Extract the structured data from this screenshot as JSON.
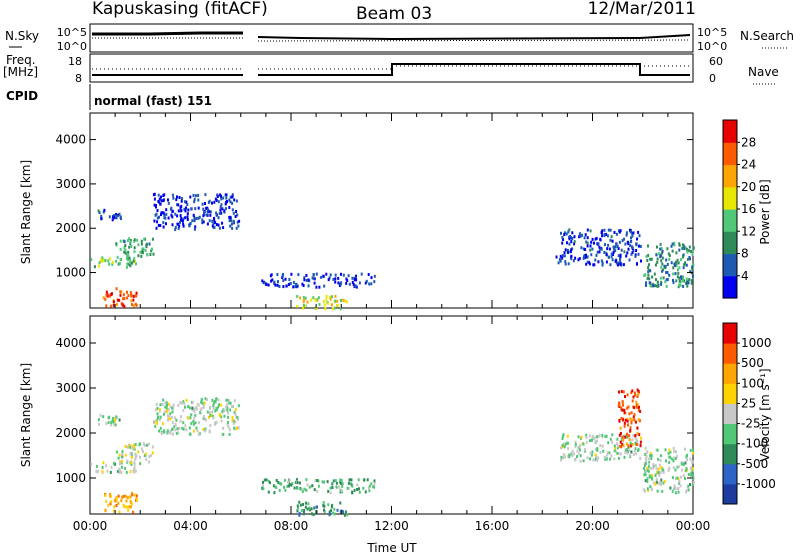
{
  "header": {
    "station": "Kapuskasing (fitACF)",
    "beam": "Beam 03",
    "date": "12/Mar/2011"
  },
  "top_panels": {
    "nsky_label": "N.Sky",
    "nsky_ticks": [
      "10^5",
      "10^0"
    ],
    "nsearch_label": "N.Search",
    "nsearch_ticks": [
      "10^5",
      "10^0"
    ],
    "freq_label": "Freq.",
    "freq_unit": "[MHz]",
    "freq_ticks": [
      "18",
      "8"
    ],
    "nave_label": "Nave",
    "nave_ticks": [
      "60",
      "0"
    ],
    "cpid_label": "CPID",
    "cpid_value": "normal (fast) 151"
  },
  "chart_data": [
    {
      "type": "heatmap",
      "name": "power-panel",
      "ylabel": "Slant Range [km]",
      "ylim": [
        200,
        4600
      ],
      "yticks": [
        "1000",
        "2000",
        "3000",
        "4000"
      ],
      "xlim": [
        0,
        24
      ],
      "colorbar_label": "Power [dB]",
      "colorbar_ticks": [
        "4",
        "8",
        "12",
        "16",
        "20",
        "24",
        "28"
      ],
      "colorbar_colors": [
        "#0000ee",
        "#1e5ab4",
        "#2e8b57",
        "#50c878",
        "#e6e600",
        "#ffa500",
        "#ff5a00",
        "#e60000"
      ],
      "features": [
        {
          "t0": 0.0,
          "t1": 1.8,
          "r0": 1150,
          "r1": 1400,
          "level": 0.45
        },
        {
          "t0": 1.0,
          "t1": 2.5,
          "r0": 1350,
          "r1": 1800,
          "level": 0.35
        },
        {
          "t0": 0.3,
          "t1": 1.2,
          "r0": 2200,
          "r1": 2450,
          "level": 0.15
        },
        {
          "t0": 2.5,
          "t1": 5.9,
          "r0": 2000,
          "r1": 2800,
          "level": 0.12
        },
        {
          "t0": 0.5,
          "t1": 1.9,
          "r0": 250,
          "r1": 700,
          "level": 0.85
        },
        {
          "t0": 6.8,
          "t1": 11.3,
          "r0": 700,
          "r1": 1000,
          "level": 0.12
        },
        {
          "t0": 8.2,
          "t1": 10.2,
          "r0": 200,
          "r1": 500,
          "level": 0.55
        },
        {
          "t0": 18.7,
          "t1": 21.9,
          "r0": 1400,
          "r1": 2000,
          "level": 0.15
        },
        {
          "t0": 18.5,
          "t1": 21.9,
          "r0": 1200,
          "r1": 1400,
          "level": 0.1
        },
        {
          "t0": 22.0,
          "t1": 24.0,
          "r0": 700,
          "r1": 1700,
          "level": 0.3
        }
      ]
    },
    {
      "type": "heatmap",
      "name": "velocity-panel",
      "ylabel": "Slant Range [km]",
      "ylim": [
        200,
        4600
      ],
      "yticks": [
        "1000",
        "2000",
        "3000",
        "4000"
      ],
      "xlabel": "Time UT",
      "xlim": [
        0,
        24
      ],
      "xticks": [
        "00:00",
        "04:00",
        "08:00",
        "12:00",
        "16:00",
        "20:00",
        "00:00"
      ],
      "colorbar_label": "Velocity [m s⁻¹]",
      "colorbar_ticks": [
        "1000",
        "500",
        "100",
        "25",
        "-25",
        "-100",
        "-500",
        "-1000"
      ],
      "colorbar_colors": [
        "#1e3ca0",
        "#2e64c8",
        "#2e8b57",
        "#50c878",
        "#c8c8c8",
        "#ffd200",
        "#ffa500",
        "#ff5a00",
        "#e60000"
      ],
      "features": [
        {
          "t0": 0.0,
          "t1": 1.8,
          "r0": 1150,
          "r1": 1400,
          "level": 0.45
        },
        {
          "t0": 1.0,
          "t1": 2.5,
          "r0": 1350,
          "r1": 1800,
          "level": 0.5
        },
        {
          "t0": 0.3,
          "t1": 1.2,
          "r0": 2200,
          "r1": 2450,
          "level": 0.45
        },
        {
          "t0": 2.5,
          "t1": 5.9,
          "r0": 2000,
          "r1": 2800,
          "level": 0.45
        },
        {
          "t0": 0.5,
          "t1": 1.9,
          "r0": 250,
          "r1": 700,
          "level": 0.7
        },
        {
          "t0": 6.8,
          "t1": 11.3,
          "r0": 700,
          "r1": 1000,
          "level": 0.35
        },
        {
          "t0": 8.2,
          "t1": 10.2,
          "r0": 200,
          "r1": 500,
          "level": 0.3
        },
        {
          "t0": 18.7,
          "t1": 21.9,
          "r0": 1400,
          "r1": 2000,
          "level": 0.45
        },
        {
          "t0": 21.0,
          "t1": 21.9,
          "r0": 1700,
          "r1": 3000,
          "level": 0.85
        },
        {
          "t0": 22.0,
          "t1": 24.0,
          "r0": 700,
          "r1": 1700,
          "level": 0.45
        }
      ]
    }
  ]
}
